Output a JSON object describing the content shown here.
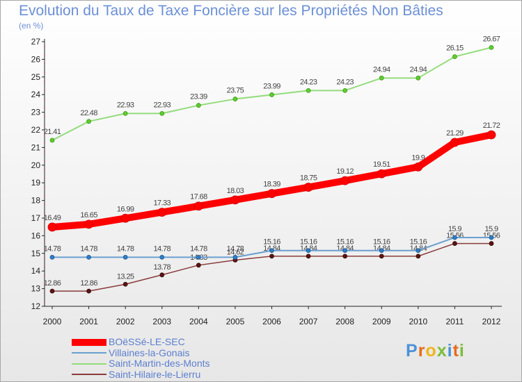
{
  "chart_data": {
    "type": "line",
    "title": "Evolution du Taux de Taxe Foncière sur les Propriétés Non Bâties",
    "ylabel": "(en %)",
    "xlabel": "",
    "ylim": [
      12,
      27
    ],
    "yticks": [
      12,
      13,
      14,
      15,
      16,
      17,
      18,
      19,
      20,
      21,
      22,
      23,
      24,
      25,
      26,
      27
    ],
    "grid": false,
    "legend_position": "bottom-left",
    "categories": [
      "2000",
      "2001",
      "2002",
      "2003",
      "2004",
      "2005",
      "2006",
      "2007",
      "2008",
      "2009",
      "2010",
      "2011",
      "2012"
    ],
    "series": [
      {
        "name": "BOëSSé-LE-SEC",
        "color": "#ff0000",
        "values": [
          16.49,
          16.65,
          16.99,
          17.33,
          17.68,
          18.03,
          18.39,
          18.75,
          19.12,
          19.51,
          19.9,
          21.29,
          21.72
        ],
        "labels": [
          "16.49",
          "16.65",
          "16.99",
          "17.33",
          "17.68",
          "18.03",
          "18.39",
          "18.75",
          "19.12",
          "19.51",
          "19.9",
          "21.29",
          "21.72"
        ]
      },
      {
        "name": "Villaines-la-Gonais",
        "color": "#6a9fd0",
        "values": [
          14.78,
          14.78,
          14.78,
          14.78,
          14.78,
          14.78,
          15.16,
          15.16,
          15.16,
          15.16,
          15.16,
          15.9,
          15.9
        ],
        "labels": [
          "14.78",
          "14.78",
          "14.78",
          "14.78",
          "14.78",
          "14.78",
          "15.16",
          "15.16",
          "15.16",
          "15.16",
          "15.16",
          "15.9",
          "15.9"
        ]
      },
      {
        "name": "Saint-Martin-des-Monts",
        "color": "#93dc7c",
        "values": [
          21.41,
          22.48,
          22.93,
          22.93,
          23.39,
          23.75,
          23.99,
          24.23,
          24.23,
          24.94,
          24.94,
          26.15,
          26.67
        ],
        "labels": [
          "21.41",
          "22.48",
          "22.93",
          "22.93",
          "23.39",
          "23.75",
          "23.99",
          "24.23",
          "24.23",
          "24.94",
          "24.94",
          "26.15",
          "26.67"
        ]
      },
      {
        "name": "Saint-Hilaire-le-Lierru",
        "color": "#8a3b3b",
        "values": [
          12.86,
          12.86,
          13.25,
          13.78,
          14.33,
          14.62,
          14.84,
          14.84,
          14.84,
          14.84,
          14.84,
          15.56,
          15.56
        ],
        "labels": [
          "12.86",
          "12.86",
          "13.25",
          "13.78",
          "14.33",
          "14.62",
          "14.84",
          "14.84",
          "14.84",
          "14.84",
          "14.84",
          "15.56",
          "15.56"
        ]
      }
    ]
  },
  "colors": {
    "title": "#6b8fd6",
    "axis": "#222222",
    "tick_accent": "#e05a5a",
    "label_text": "#444444",
    "legend_text": "#5b7fcf"
  },
  "branding": {
    "logo_letters": [
      "P",
      "r",
      "o",
      "x",
      "i",
      "t",
      "i"
    ]
  }
}
